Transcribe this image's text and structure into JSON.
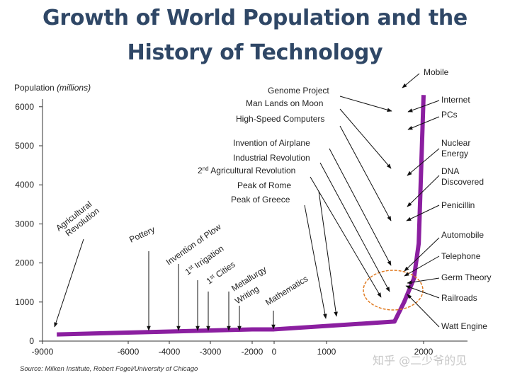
{
  "title_line1": "Growth of World Population and the",
  "title_line2": "History of Technology",
  "source": "Source: Milken Institute, Robert Fogel/University of Chicago",
  "watermark": "知乎 @二少爷的见",
  "colors": {
    "line": "#8b1fa0",
    "title": "#2f4766",
    "circle": "#e07b22",
    "text": "#222222"
  },
  "chart_data": {
    "type": "line",
    "ylabel": "Population",
    "ylabel_unit": "(millions)",
    "xlim": [
      -9000,
      2200
    ],
    "ylim": [
      0,
      6500
    ],
    "x_ticks": [
      {
        "v": -9000,
        "label": "-9000"
      },
      {
        "v": -6000,
        "label": "-6000"
      },
      {
        "v": -4000,
        "label": "-4000"
      },
      {
        "v": -3000,
        "label": "-3000"
      },
      {
        "v": -2000,
        "label": "-2000"
      },
      {
        "v": 0,
        "label": "0"
      },
      {
        "v": 1000,
        "label": "1000"
      },
      {
        "v": 2000,
        "label": "2000"
      }
    ],
    "y_ticks": [
      0,
      1000,
      2000,
      3000,
      4000,
      5000,
      6000
    ],
    "series": [
      {
        "x": [
          -8500,
          -2000,
          0,
          1700,
          1800,
          1900,
          1950,
          2000
        ],
        "y": [
          170,
          300,
          300,
          500,
          1000,
          1600,
          2500,
          6300
        ]
      }
    ],
    "annotations": [
      {
        "text": "Agricultural Revolution",
        "x": -8600
      },
      {
        "text": "Pottery",
        "x": -5300
      },
      {
        "text": "Invention of Plow",
        "x": -3900
      },
      {
        "text": "1st Irrigation",
        "x": -3400
      },
      {
        "text": "1st Cities",
        "x": -3000
      },
      {
        "text": "Metallurgy",
        "x": -2600
      },
      {
        "text": "Writing",
        "x": -2300
      },
      {
        "text": "Mathematics",
        "x": 0
      },
      {
        "text": "Peak of Greece",
        "x": 1000
      },
      {
        "text": "Peak of Rome",
        "x": 1100
      },
      {
        "text": "2nd Agricultural Revolution",
        "x": 1700
      },
      {
        "text": "Industrial Revolution",
        "x": 1760
      },
      {
        "text": "Invention of Airplane",
        "x": 1903
      },
      {
        "text": "High-Speed Computers",
        "x": 1945
      },
      {
        "text": "Man Lands on Moon",
        "x": 1969
      },
      {
        "text": "Genome Project",
        "x": 1990
      },
      {
        "text": "Mobile",
        "x": 2000
      },
      {
        "text": "Internet",
        "x": 1990
      },
      {
        "text": "PCs",
        "x": 1980
      },
      {
        "text": "Nuclear Energy",
        "x": 1945
      },
      {
        "text": "DNA Discovered",
        "x": 1953
      },
      {
        "text": "Penicillin",
        "x": 1928
      },
      {
        "text": "Automobile",
        "x": 1886
      },
      {
        "text": "Telephone",
        "x": 1876
      },
      {
        "text": "Germ Theory",
        "x": 1860
      },
      {
        "text": "Railroads",
        "x": 1825
      },
      {
        "text": "Watt Engine",
        "x": 1776
      }
    ]
  }
}
